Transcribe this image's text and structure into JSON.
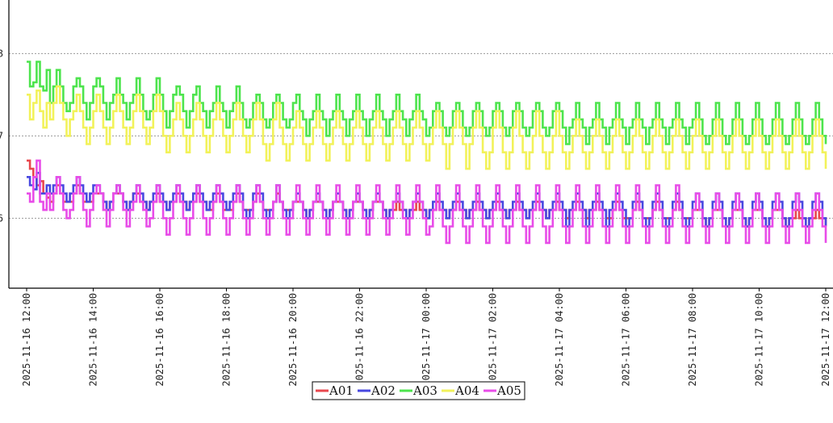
{
  "chart_data": {
    "type": "line",
    "title": "",
    "xlabel": "",
    "ylabel": "",
    "xlim": [
      "2025-11-16 12:00",
      "2025-11-17 12:00"
    ],
    "ylim": [
      5.15,
      8.65
    ],
    "grid": "horizontal dotted",
    "legend_position": "bottom-center",
    "x_ticks": [
      "2025-11-16 12:00",
      "2025-11-16 14:00",
      "2025-11-16 16:00",
      "2025-11-16 18:00",
      "2025-11-16 20:00",
      "2025-11-16 22:00",
      "2025-11-17 00:00",
      "2025-11-17 02:00",
      "2025-11-17 04:00",
      "2025-11-17 06:00",
      "2025-11-17 08:00",
      "2025-11-17 10:00",
      "2025-11-17 12:00"
    ],
    "y_ticks": [
      {
        "value": 6,
        "label": "6"
      },
      {
        "value": 7,
        "label": "7"
      },
      {
        "value": 8,
        "label": "8"
      }
    ],
    "cycle_minutes": 36,
    "series": [
      {
        "name": "A01",
        "color": "#e8474d",
        "start": [
          6.7,
          6.6,
          6.5,
          6.4,
          6.45,
          6.3,
          6.25
        ],
        "cycle_trough": [
          6.2,
          6.1,
          6.05,
          6.0,
          6.0,
          5.95,
          5.9
        ],
        "cycle_peak": [
          6.4,
          6.3,
          6.25,
          6.2,
          6.2,
          6.15,
          6.1
        ]
      },
      {
        "name": "A02",
        "color": "#4848e0",
        "start": [
          6.5,
          6.4,
          6.35,
          6.55,
          6.3,
          6.3,
          6.4
        ],
        "cycle_trough": [
          6.2,
          6.1,
          6.0,
          5.95,
          5.95,
          5.9,
          5.85
        ],
        "cycle_peak": [
          6.5,
          6.4,
          6.35,
          6.3,
          6.3,
          6.3,
          6.3
        ]
      },
      {
        "name": "A03",
        "color": "#4de44d",
        "start": [
          7.9,
          7.6,
          7.65,
          7.9,
          7.6,
          7.55,
          7.8
        ],
        "cycle_trough": [
          7.3,
          7.15,
          7.05,
          7.0,
          6.95,
          6.9,
          6.85
        ],
        "cycle_peak": [
          7.8,
          7.65,
          7.5,
          7.45,
          7.4,
          7.35,
          7.35
        ]
      },
      {
        "name": "A04",
        "color": "#f2f25a",
        "start": [
          7.5,
          7.2,
          7.4,
          7.55,
          7.3,
          7.1,
          7.4
        ],
        "cycle_trough": [
          7.0,
          6.85,
          6.7,
          6.65,
          6.6,
          6.55,
          6.55
        ],
        "cycle_peak": [
          7.6,
          7.45,
          7.35,
          7.3,
          7.25,
          7.2,
          7.2
        ]
      },
      {
        "name": "A05",
        "color": "#e84ce8",
        "start": [
          6.3,
          6.2,
          6.5,
          6.7,
          6.2,
          6.1,
          6.3
        ],
        "cycle_trough": [
          6.0,
          5.85,
          5.75,
          5.75,
          5.7,
          5.7,
          5.65
        ],
        "cycle_peak": [
          6.5,
          6.4,
          6.4,
          6.35,
          6.35,
          6.35,
          6.3
        ]
      }
    ]
  }
}
